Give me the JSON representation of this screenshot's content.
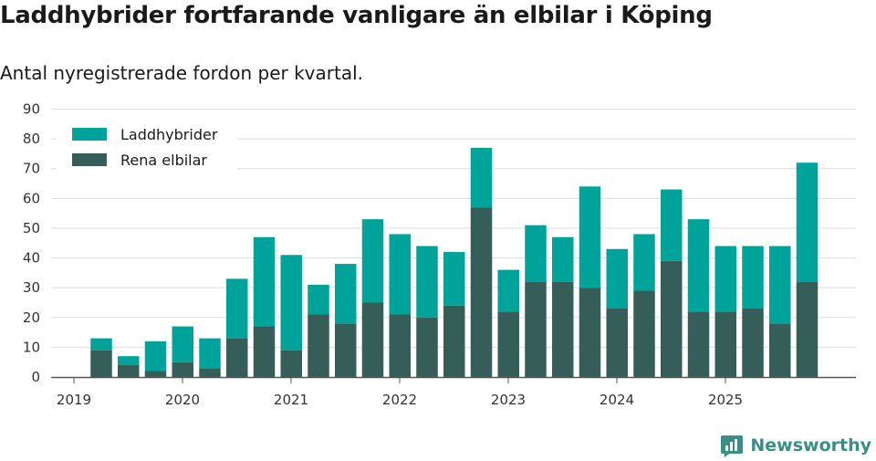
{
  "title": "Laddhybrider fortfarande vanligare än elbilar i Köping",
  "subtitle": "Antal nyregistrerade fordon per kvartal.",
  "brand": "Newsworthy",
  "colors": {
    "hybrid": "#00a39a",
    "electric": "#355e58",
    "grid": "#dddddd",
    "axis": "#555555"
  },
  "chart_data": {
    "type": "bar",
    "stacked": true,
    "title": "Laddhybrider fortfarande vanligare än elbilar i Köping",
    "ylabel": "",
    "xlabel": "",
    "ylim": [
      0,
      90
    ],
    "y_ticks": [
      "0",
      "10",
      "20",
      "30",
      "40",
      "50",
      "60",
      "70",
      "80",
      "90"
    ],
    "x_ticks": [
      "2019",
      "2020",
      "2021",
      "2022",
      "2023",
      "2024",
      "2025"
    ],
    "legend_position": "top-left",
    "categories": [
      "2019 Q2",
      "2019 Q3",
      "2019 Q4",
      "2020 Q1",
      "2020 Q2",
      "2020 Q3",
      "2020 Q4",
      "2021 Q1",
      "2021 Q2",
      "2021 Q3",
      "2021 Q4",
      "2022 Q1",
      "2022 Q2",
      "2022 Q3",
      "2022 Q4",
      "2023 Q1",
      "2023 Q2",
      "2023 Q3",
      "2023 Q4",
      "2024 Q1",
      "2024 Q2",
      "2024 Q3",
      "2024 Q4",
      "2025 Q1",
      "2025 Q2",
      "2025 Q3",
      "2025 Q4"
    ],
    "series": [
      {
        "name": "Laddhybrider",
        "values": [
          4,
          3,
          10,
          12,
          10,
          20,
          30,
          32,
          10,
          20,
          28,
          27,
          24,
          18,
          20,
          14,
          19,
          15,
          34,
          20,
          19,
          24,
          31,
          22,
          21,
          26,
          40
        ]
      },
      {
        "name": "Rena elbilar",
        "values": [
          9,
          4,
          2,
          5,
          3,
          13,
          17,
          9,
          21,
          18,
          25,
          21,
          20,
          24,
          57,
          22,
          32,
          32,
          30,
          23,
          29,
          39,
          22,
          22,
          23,
          18,
          32
        ]
      }
    ]
  }
}
